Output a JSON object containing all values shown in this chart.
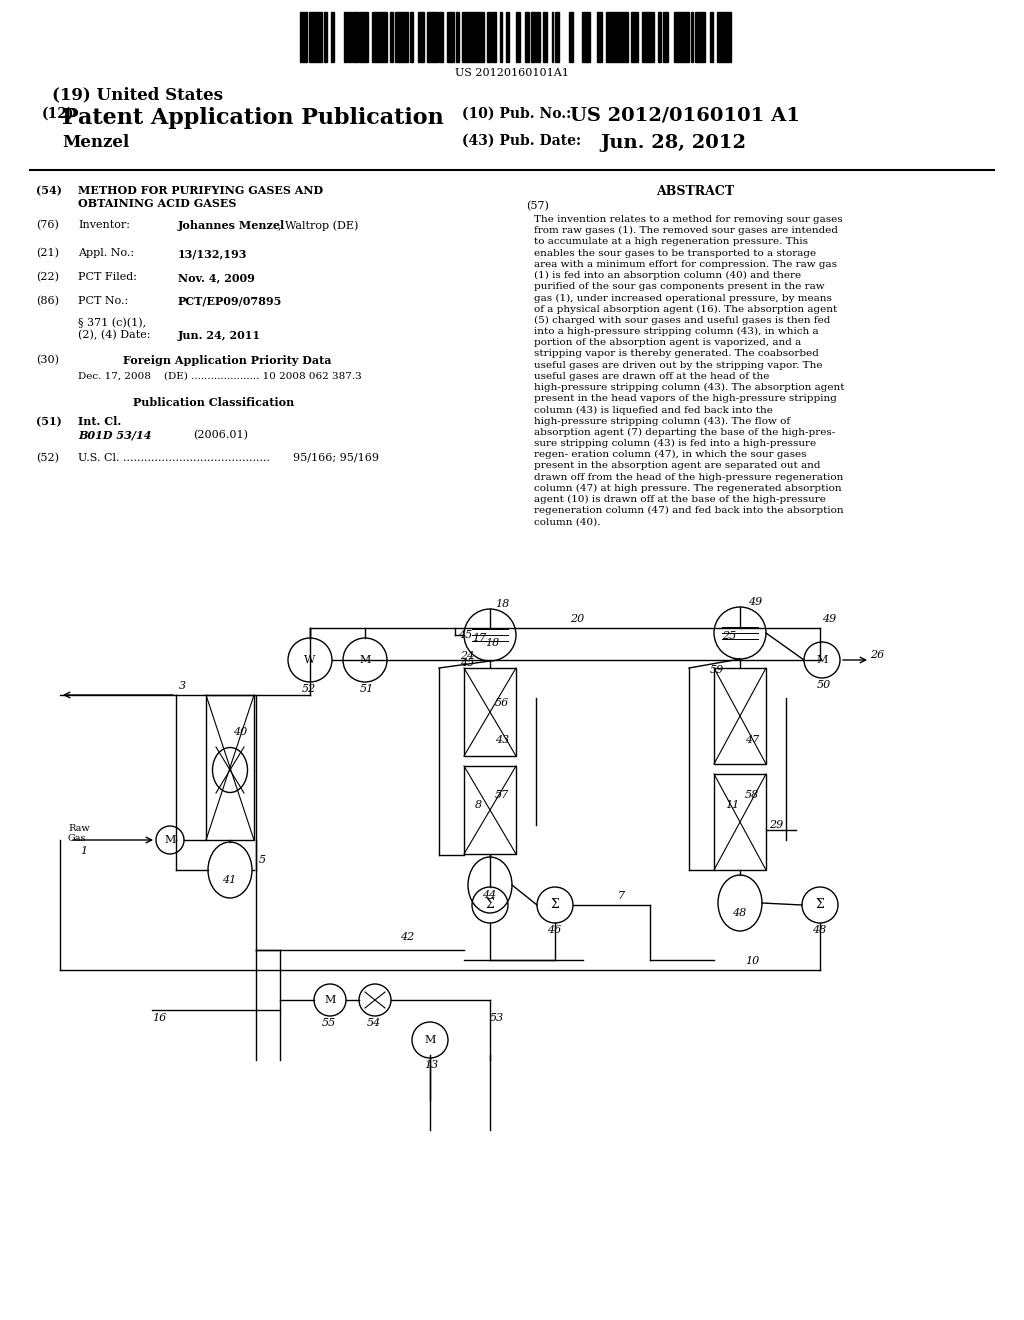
{
  "barcode_text": "US 20120160101A1",
  "title_19": "(19) United States",
  "title_12_a": "(12)",
  "title_12_b": "Patent Application Publication",
  "pub_no_label": "(10) Pub. No.:",
  "pub_no_value": "US 2012/0160101 A1",
  "pub_date_label": "(43) Pub. Date:",
  "pub_date_value": "Jun. 28, 2012",
  "inventor_name": "Menzel",
  "field_54_label": "(54)",
  "field_54_text1": "METHOD FOR PURIFYING GASES AND",
  "field_54_text2": "OBTAINING ACID GASES",
  "field_76_label": "(76)",
  "field_76_name": "Inventor:",
  "field_76_value_bold": "Johannes Menzel",
  "field_76_value_reg": ", Waltrop (DE)",
  "field_21_label": "(21)",
  "field_21_name": "Appl. No.:",
  "field_21_value": "13/132,193",
  "field_22_label": "(22)",
  "field_22_name": "PCT Filed:",
  "field_22_value": "Nov. 4, 2009",
  "field_86_label": "(86)",
  "field_86_name": "PCT No.:",
  "field_86_value": "PCT/EP09/07895",
  "field_86b_name": "§ 371 (c)(1),",
  "field_86b_name2": "(2), (4) Date:",
  "field_86b_value": "Jun. 24, 2011",
  "field_30_label": "(30)",
  "field_30_name": "Foreign Application Priority Data",
  "field_30_entry1": "Dec. 17, 2008    (DE) ..................... 10 2008 062 387.3",
  "pub_class_title": "Publication Classification",
  "field_51_label": "(51)",
  "field_51_name": "Int. Cl.",
  "field_51_value": "B01D 53/14",
  "field_51_year": "(2006.01)",
  "field_52_label": "(52)",
  "field_52_name": "U.S. Cl.",
  "field_52_dots": "..........................................",
  "field_52_value": "95/166; 95/169",
  "abstract_title": "ABSTRACT",
  "abstract_no": "(57)",
  "abstract_text": "The invention relates to a method for removing sour gases from raw gases (1). The removed sour gases are intended to accumulate at a high regeneration pressure. This enables the sour gases to be transported to a storage area with a minimum effort for compression. The raw gas (1) is fed into an absorption column (40) and there purified of the sour gas components present in the raw gas (1), under increased operational pressure, by means of a physical absorption agent (16). The absorption agent (5) charged with sour gases and useful gases is then fed into a high-pressure stripping column (43), in which a portion of the absorption agent is vaporized, and a stripping vapor is thereby generated. The coabsorbed useful gases are driven out by the stripping vapor. The useful gases are drawn off at the head of the high-pressure stripping column (43). The absorption agent present in the head vapors of the high-pressure stripping column (43) is liquefied and fed back into the high-pressure stripping column (43). The flow of absorption agent (7) departing the base of the high-pres- sure stripping column (43) is fed into a high-pressure regen- eration column (47), in which the sour gases present in the absorption agent are separated out and drawn off from the head of the high-pressure regeneration column (47) at high pressure. The regenerated absorption agent (10) is drawn off at the base of the high-pressure regeneration column (47) and fed back into the absorption column (40).",
  "bg_color": "#ffffff",
  "text_color": "#000000"
}
